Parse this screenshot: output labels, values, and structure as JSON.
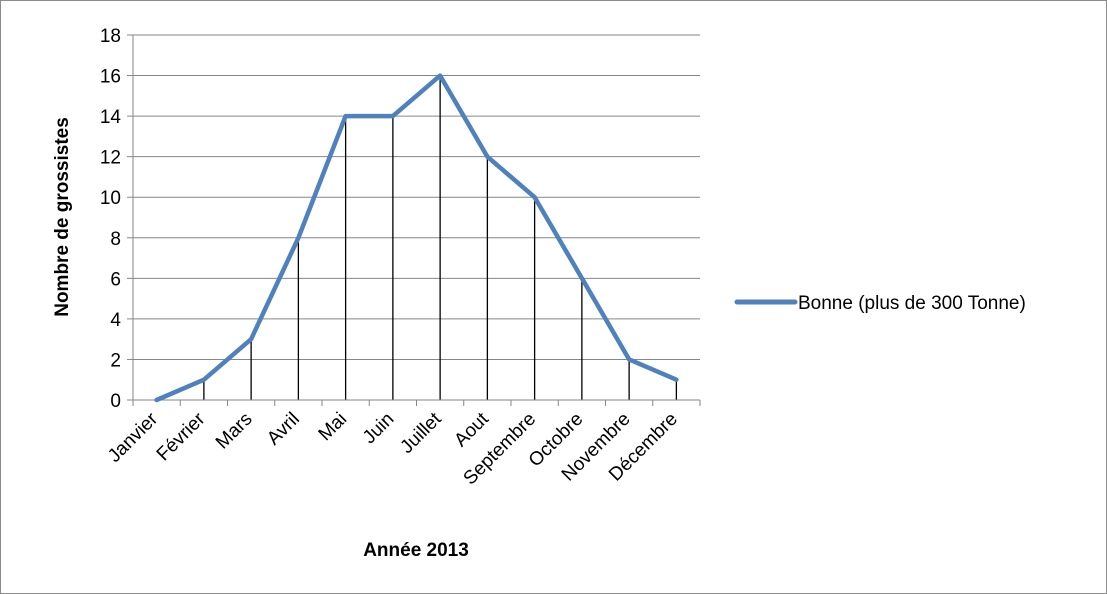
{
  "chart_data": {
    "type": "line",
    "title": "",
    "xlabel": "Année 2013",
    "ylabel": "Nombre de grossistes",
    "categories": [
      "Janvier",
      "Février",
      "Mars",
      "Avril",
      "Mai",
      "Juin",
      "Juillet",
      "Aout",
      "Septembre",
      "Octobre",
      "Novembre",
      "Décembre"
    ],
    "series": [
      {
        "name": "Bonne (plus de 300 Tonne)",
        "values": [
          0,
          1,
          3,
          8,
          14,
          14,
          16,
          12,
          10,
          6,
          2,
          1
        ],
        "color": "#4f81bd"
      }
    ],
    "ylim": [
      0,
      18
    ],
    "yticks": [
      "0",
      "2",
      "4",
      "6",
      "8",
      "10",
      "12",
      "14",
      "16",
      "18"
    ],
    "grid": "horizontal",
    "drop_lines": true,
    "legend_position": "right"
  }
}
